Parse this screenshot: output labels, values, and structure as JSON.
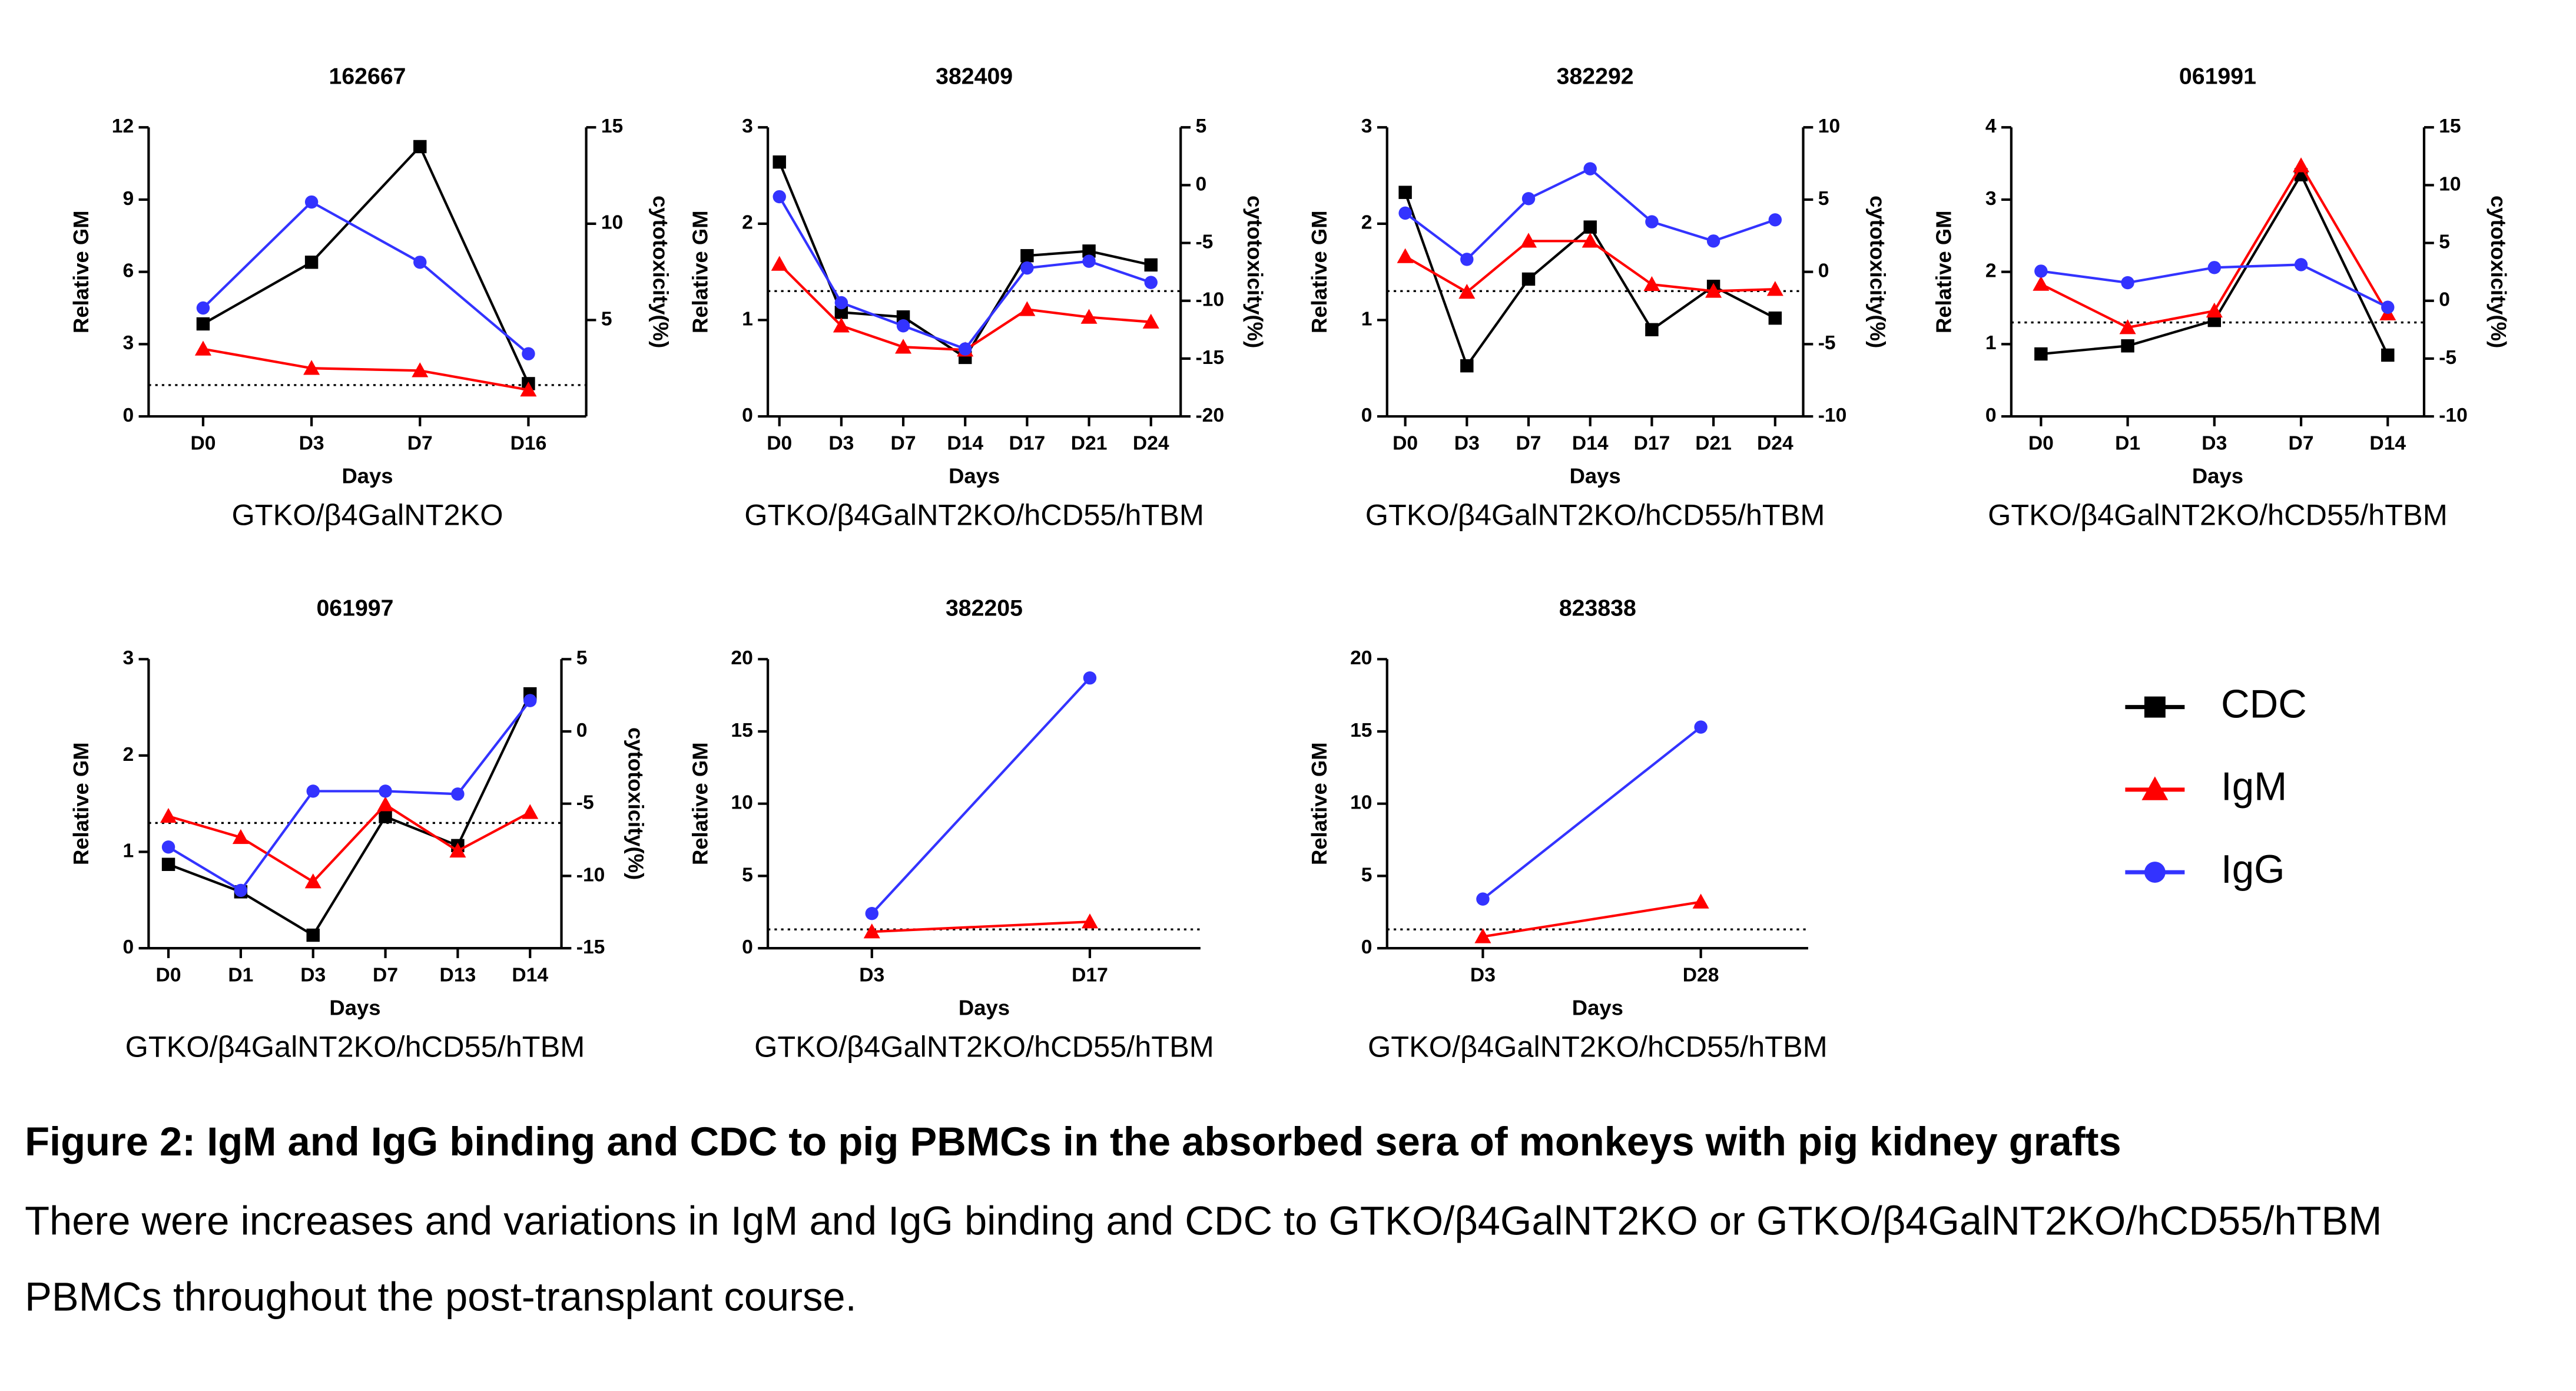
{
  "chart_data": [
    {
      "type": "line",
      "title": "162667",
      "subtitle": "GTKO/β4GalNT2KO",
      "xlabel": "Days",
      "ylabel": "Relative GM",
      "y2label": "cytotoxicity(%)",
      "categories": [
        "D0",
        "D3",
        "D7",
        "D16"
      ],
      "ylim": [
        0,
        12
      ],
      "yticks": [
        0,
        3,
        6,
        9,
        12
      ],
      "y2lim": [
        0,
        15
      ],
      "y2ticks": [
        5,
        10,
        15
      ],
      "reference_line": 1.3,
      "series": [
        {
          "name": "CDC",
          "color": "#000000",
          "marker": "square",
          "axis": "y2",
          "values": [
            4.8,
            8.0,
            14.0,
            1.7
          ]
        },
        {
          "name": "IgM",
          "color": "#ff0000",
          "marker": "triangle",
          "values": [
            2.8,
            2.0,
            1.9,
            1.1
          ]
        },
        {
          "name": "IgG",
          "color": "#3333ff",
          "marker": "circle",
          "values": [
            4.5,
            8.9,
            6.4,
            2.6
          ]
        }
      ]
    },
    {
      "type": "line",
      "title": "382409",
      "subtitle": "GTKO/β4GalNT2KO/hCD55/hTBM",
      "xlabel": "Days",
      "ylabel": "Relative GM",
      "y2label": "cytotoxicity(%)",
      "categories": [
        "D0",
        "D3",
        "D7",
        "D14",
        "D17",
        "D21",
        "D24"
      ],
      "ylim": [
        0,
        3
      ],
      "yticks": [
        0,
        1,
        2,
        3
      ],
      "y2lim": [
        -20,
        5
      ],
      "y2ticks": [
        -20,
        -15,
        -10,
        -5,
        0,
        5
      ],
      "reference_line": 1.3,
      "series": [
        {
          "name": "CDC",
          "color": "#000000",
          "marker": "square",
          "axis": "y2",
          "values": [
            2.0,
            -11.0,
            -11.4,
            -14.9,
            -6.1,
            -5.7,
            -6.9
          ]
        },
        {
          "name": "IgM",
          "color": "#ff0000",
          "marker": "triangle",
          "values": [
            1.58,
            0.94,
            0.72,
            0.69,
            1.11,
            1.03,
            0.98
          ]
        },
        {
          "name": "IgG",
          "color": "#3333ff",
          "marker": "circle",
          "values": [
            2.28,
            1.18,
            0.94,
            0.7,
            1.54,
            1.61,
            1.39
          ]
        }
      ]
    },
    {
      "type": "line",
      "title": "382292",
      "subtitle": "GTKO/β4GalNT2KO/hCD55/hTBM",
      "xlabel": "Days",
      "ylabel": "Relative GM",
      "y2label": "cytotoxicity(%)",
      "categories": [
        "D0",
        "D3",
        "D7",
        "D14",
        "D17",
        "D21",
        "D24"
      ],
      "ylim": [
        0,
        3
      ],
      "yticks": [
        0,
        1,
        2,
        3
      ],
      "y2lim": [
        -10,
        10
      ],
      "y2ticks": [
        -10,
        -5,
        0,
        5,
        10
      ],
      "reference_line": 1.3,
      "series": [
        {
          "name": "CDC",
          "color": "#000000",
          "marker": "square",
          "axis": "y2",
          "values": [
            5.5,
            -6.5,
            -0.5,
            3.1,
            -4.0,
            -1.0,
            -3.2
          ]
        },
        {
          "name": "IgM",
          "color": "#ff0000",
          "marker": "triangle",
          "values": [
            1.66,
            1.29,
            1.82,
            1.82,
            1.37,
            1.3,
            1.32
          ]
        },
        {
          "name": "IgG",
          "color": "#3333ff",
          "marker": "circle",
          "values": [
            2.11,
            1.63,
            2.26,
            2.57,
            2.02,
            1.82,
            2.04
          ]
        }
      ]
    },
    {
      "type": "line",
      "title": "061991",
      "subtitle": "GTKO/β4GalNT2KO/hCD55/hTBM",
      "xlabel": "Days",
      "ylabel": "Relative GM",
      "y2label": "cytotoxicity(%)",
      "categories": [
        "D0",
        "D1",
        "D3",
        "D7",
        "D14"
      ],
      "ylim": [
        0,
        4
      ],
      "yticks": [
        0,
        1,
        2,
        3,
        4
      ],
      "y2lim": [
        -10,
        15
      ],
      "y2ticks": [
        -10,
        -5,
        0,
        5,
        10,
        15
      ],
      "reference_line": 1.3,
      "series": [
        {
          "name": "CDC",
          "color": "#000000",
          "marker": "square",
          "axis": "y2",
          "values": [
            -4.6,
            -3.9,
            -1.7,
            10.9,
            -4.7
          ]
        },
        {
          "name": "IgM",
          "color": "#ff0000",
          "marker": "triangle",
          "values": [
            1.83,
            1.23,
            1.46,
            3.47,
            1.42
          ]
        },
        {
          "name": "IgG",
          "color": "#3333ff",
          "marker": "circle",
          "values": [
            2.01,
            1.85,
            2.06,
            2.1,
            1.51
          ]
        }
      ]
    },
    {
      "type": "line",
      "title": "061997",
      "subtitle": "GTKO/β4GalNT2KO/hCD55/hTBM",
      "xlabel": "Days",
      "ylabel": "Relative GM",
      "y2label": "cytotoxicity(%)",
      "categories": [
        "D0",
        "D1",
        "D3",
        "D7",
        "D13",
        "D14"
      ],
      "ylim": [
        0,
        3
      ],
      "yticks": [
        0,
        1,
        2,
        3
      ],
      "y2lim": [
        -15,
        5
      ],
      "y2ticks": [
        -15,
        -10,
        -5,
        0,
        5
      ],
      "reference_line": 1.3,
      "series": [
        {
          "name": "CDC",
          "color": "#000000",
          "marker": "square",
          "axis": "y2",
          "values": [
            -9.2,
            -11.1,
            -14.1,
            -5.9,
            -7.9,
            2.6
          ]
        },
        {
          "name": "IgM",
          "color": "#ff0000",
          "marker": "triangle",
          "values": [
            1.37,
            1.15,
            0.69,
            1.49,
            1.01,
            1.41
          ]
        },
        {
          "name": "IgG",
          "color": "#3333ff",
          "marker": "circle",
          "values": [
            1.05,
            0.6,
            1.63,
            1.63,
            1.6,
            2.57
          ]
        }
      ]
    },
    {
      "type": "line",
      "title": "382205",
      "subtitle": "GTKO/β4GalNT2KO/hCD55/hTBM",
      "xlabel": "Days",
      "ylabel": "Relative GM",
      "categories": [
        "D3",
        "D17"
      ],
      "ylim": [
        0,
        20
      ],
      "yticks": [
        0,
        5,
        10,
        15,
        20
      ],
      "reference_line": 1.3,
      "series": [
        {
          "name": "IgM",
          "color": "#ff0000",
          "marker": "triangle",
          "values": [
            1.14,
            1.83
          ]
        },
        {
          "name": "IgG",
          "color": "#3333ff",
          "marker": "circle",
          "values": [
            2.4,
            18.7
          ]
        }
      ]
    },
    {
      "type": "line",
      "title": "823838",
      "subtitle": "GTKO/β4GalNT2KO/hCD55/hTBM",
      "xlabel": "Days",
      "ylabel": "Relative GM",
      "categories": [
        "D3",
        "D28"
      ],
      "ylim": [
        0,
        20
      ],
      "yticks": [
        0,
        5,
        10,
        15,
        20
      ],
      "reference_line": 1.3,
      "series": [
        {
          "name": "IgM",
          "color": "#ff0000",
          "marker": "triangle",
          "values": [
            0.8,
            3.2
          ]
        },
        {
          "name": "IgG",
          "color": "#3333ff",
          "marker": "circle",
          "values": [
            3.4,
            15.3
          ]
        }
      ]
    }
  ],
  "caption": {
    "title": "Figure 2: IgM and IgG binding and CDC to pig PBMCs in the absorbed sera of monkeys with pig kidney grafts",
    "lines": [
      "There were increases and variations in IgM and IgG binding and CDC to GTKO/β4GalNT2KO or GTKO/β4GalNT2KO/hCD55/hTBM",
      "PBMCs throughout the post-transplant course."
    ]
  }
}
